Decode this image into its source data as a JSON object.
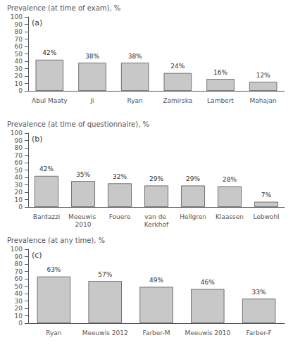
{
  "chart_data": [
    {
      "type": "bar",
      "categories": [
        "Abul Maaty",
        "Ji",
        "Ryan",
        "Zamirska",
        "Lambert",
        "Mahajan"
      ],
      "values": [
        42,
        38,
        38,
        24,
        16,
        12
      ],
      "value_labels": [
        "42%",
        "38%",
        "38%",
        "24%",
        "16%",
        "12%"
      ],
      "ylabel": "Prevalence (at time of exam), %",
      "annotations": [
        "(a)"
      ],
      "color": "#c8c8c8",
      "ylim": [
        0,
        100
      ],
      "yticks": [
        0,
        10,
        20,
        30,
        40,
        50,
        60,
        70,
        80,
        90,
        100
      ],
      "grid": false,
      "data_labels": true
    },
    {
      "type": "bar",
      "categories": [
        "Bardazzi",
        "Meeuwis 2010",
        "Fouere",
        "van de Kerkhof",
        "Hellgren",
        "Klaassen",
        "Lebwohl"
      ],
      "values": [
        42,
        35,
        32,
        29,
        29,
        28,
        7
      ],
      "value_labels": [
        "42%",
        "35%",
        "32%",
        "29%",
        "29%",
        "28%",
        "7%"
      ],
      "ylabel": "Prevalence (at time of questionnaire), %",
      "annotations": [
        "(b)"
      ],
      "color": "#c8c8c8",
      "ylim": [
        0,
        100
      ],
      "yticks": [
        0,
        10,
        20,
        30,
        40,
        50,
        60,
        70,
        80,
        90,
        100
      ],
      "grid": false,
      "data_labels": true
    },
    {
      "type": "bar",
      "categories": [
        "Ryan",
        "Meeuwis 2012",
        "Farber-M",
        "Meeuwis 2010",
        "Farber-F"
      ],
      "values": [
        63,
        57,
        49,
        46,
        33
      ],
      "value_labels": [
        "63%",
        "57%",
        "49%",
        "46%",
        "33%"
      ],
      "ylabel": "Prevalence (at any time), %",
      "annotations": [
        "(c)"
      ],
      "color": "#c8c8c8",
      "ylim": [
        0,
        100
      ],
      "yticks": [
        0,
        10,
        20,
        30,
        40,
        50,
        60,
        70,
        80,
        90,
        100
      ],
      "grid": false,
      "data_labels": true
    }
  ]
}
